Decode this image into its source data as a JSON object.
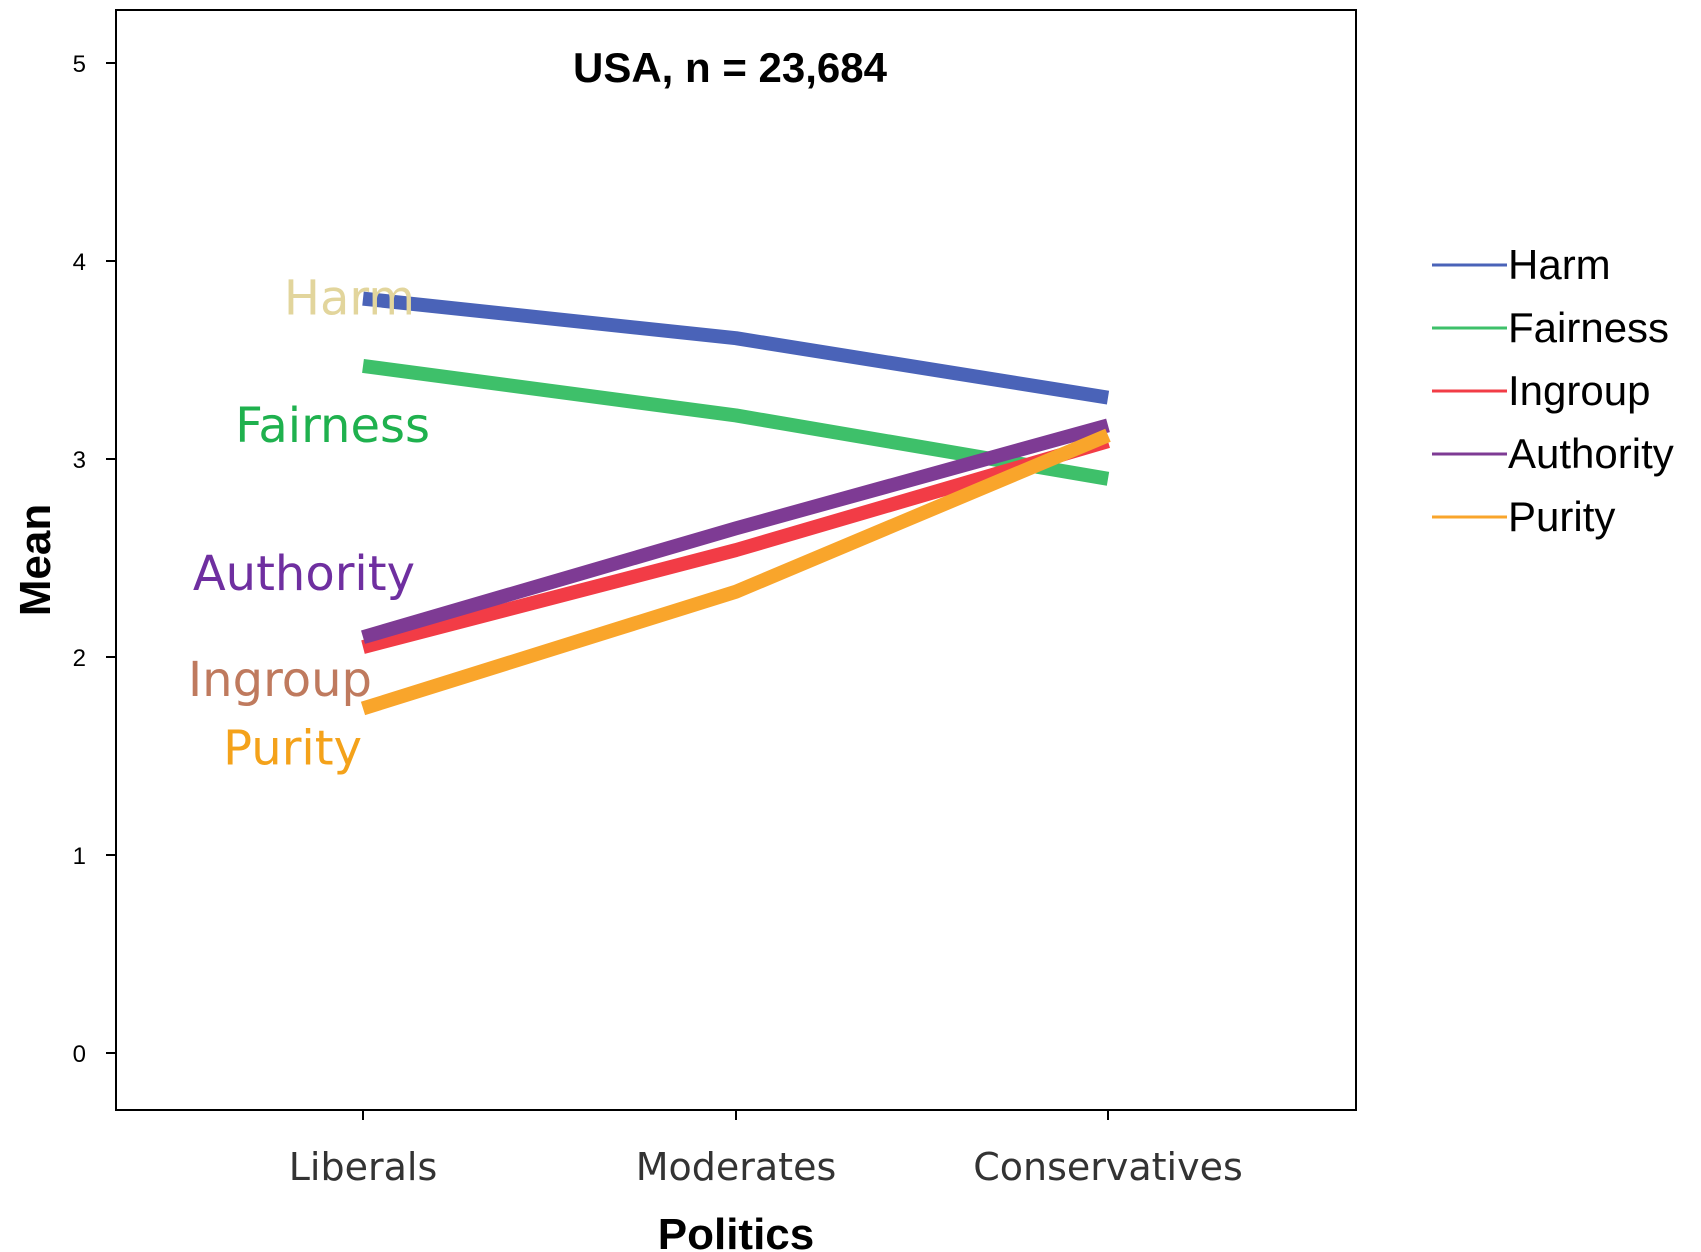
{
  "chart_data": {
    "type": "line",
    "title": "USA, n = 23,684",
    "xlabel": "Politics",
    "ylabel": "Mean",
    "categories": [
      "Liberals",
      "Moderates",
      "Conservatives"
    ],
    "ylim": [
      0,
      5
    ],
    "yticks": [
      "0",
      "1",
      "2",
      "3",
      "4",
      "5"
    ],
    "grid": false,
    "legend_position": "right",
    "series": [
      {
        "name": "Harm",
        "values": [
          3.81,
          3.61,
          3.31
        ],
        "color": "#4a63b8"
      },
      {
        "name": "Fairness",
        "values": [
          3.47,
          3.22,
          2.9
        ],
        "color": "#3ec06a"
      },
      {
        "name": "Ingroup",
        "values": [
          2.05,
          2.54,
          3.09
        ],
        "color": "#f23c46"
      },
      {
        "name": "Authority",
        "values": [
          2.1,
          2.65,
          3.17
        ],
        "color": "#7e3b94"
      },
      {
        "name": "Purity",
        "values": [
          1.74,
          2.33,
          3.12
        ],
        "color": "#f9a52b"
      }
    ],
    "annotations": [
      {
        "text": "Harm",
        "series": "Harm",
        "color": "#e2d59c"
      },
      {
        "text": "Fairness",
        "series": "Fairness",
        "color": "#1fb14e"
      },
      {
        "text": "Authority",
        "series": "Authority",
        "color": "#6f2fa0"
      },
      {
        "text": "Ingroup",
        "series": "Ingroup",
        "color": "#bf7a5e"
      },
      {
        "text": "Purity",
        "series": "Purity",
        "color": "#f4a21a"
      }
    ]
  }
}
